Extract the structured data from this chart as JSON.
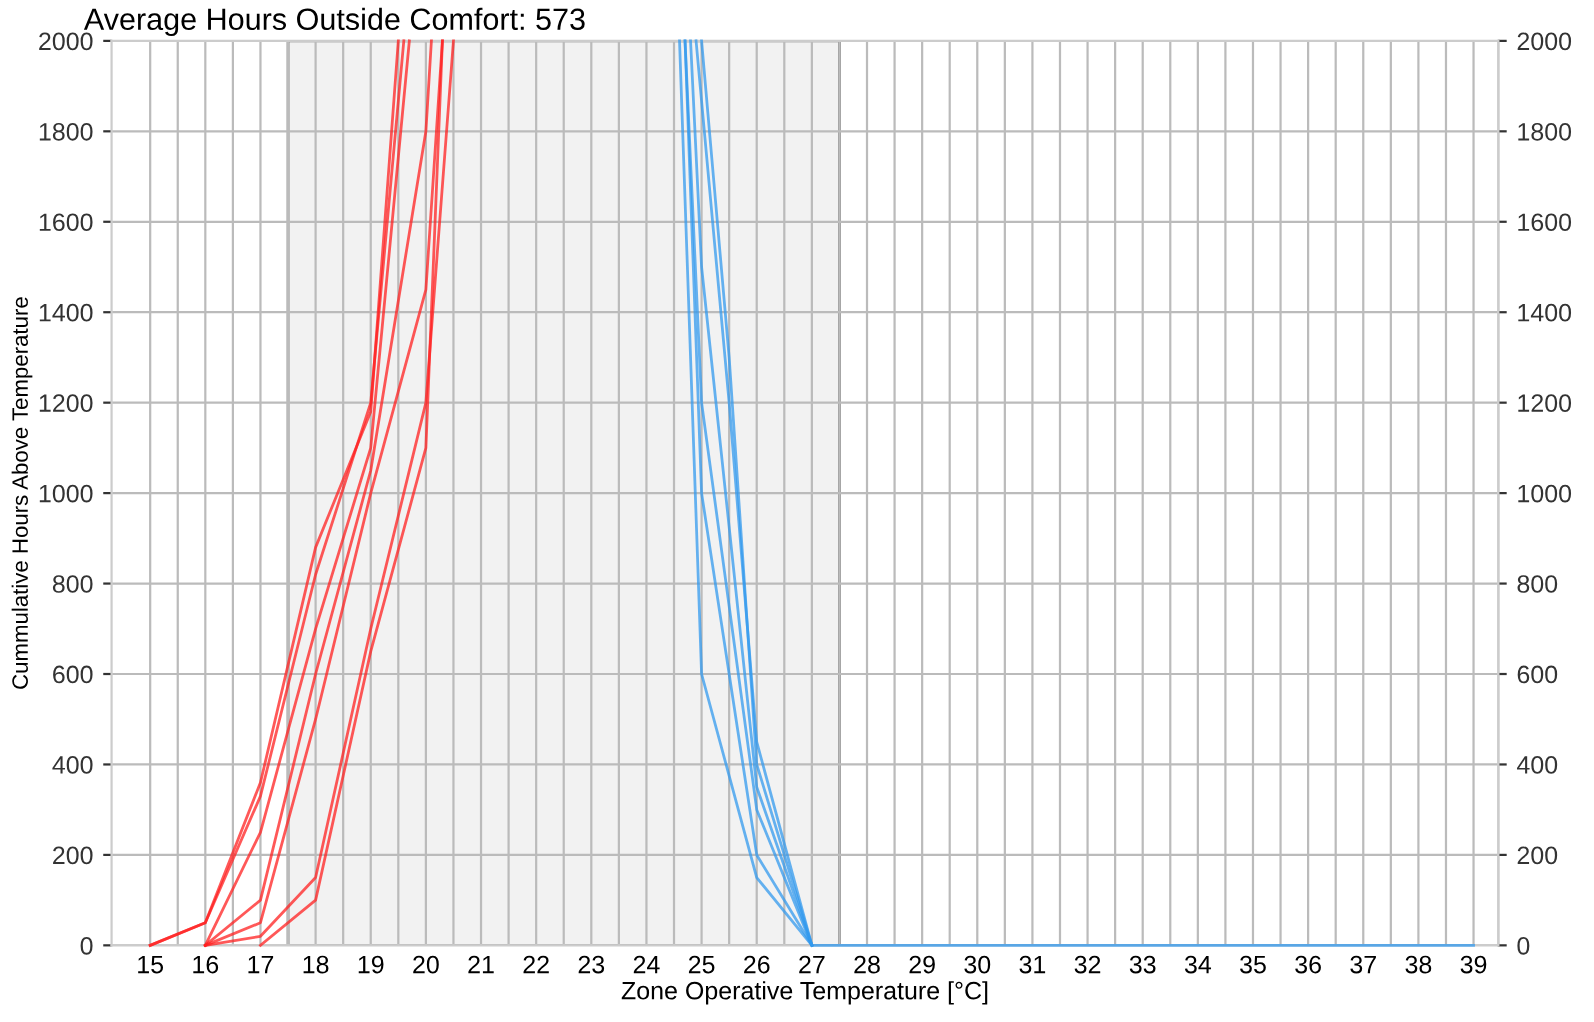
{
  "chart_data": {
    "type": "line",
    "title": "Average Hours Outside Comfort: 573",
    "xlabel": "Zone Operative Temperature [°C]",
    "ylabel": "Cummulative Hours Above Temperature",
    "xlim": [
      14.3,
      39.45
    ],
    "ylim": [
      0,
      2000
    ],
    "y2lim": [
      0,
      2000
    ],
    "xticks": [
      15,
      16,
      17,
      18,
      19,
      20,
      21,
      22,
      23,
      24,
      25,
      26,
      27,
      28,
      29,
      30,
      31,
      32,
      33,
      34,
      35,
      36,
      37,
      38,
      39,
      {
        "value": 15.5,
        "label": null
      },
      {
        "value": 16.5,
        "label": null
      },
      {
        "value": 17.5,
        "label": null
      },
      {
        "value": 18.5,
        "label": null
      },
      {
        "value": 19.5,
        "label": null
      },
      {
        "value": 20.5,
        "label": null
      },
      {
        "value": 21.5,
        "label": null
      },
      {
        "value": 22.5,
        "label": null
      },
      {
        "value": 23.5,
        "label": null
      },
      {
        "value": 24.5,
        "label": null
      },
      {
        "value": 25.5,
        "label": null
      },
      {
        "value": 26.5,
        "label": null
      },
      {
        "value": 27.5,
        "label": null
      },
      {
        "value": 28.5,
        "label": null
      },
      {
        "value": 29.5,
        "label": null
      },
      {
        "value": 30.5,
        "label": null
      },
      {
        "value": 31.5,
        "label": null
      },
      {
        "value": 32.5,
        "label": null
      },
      {
        "value": 33.5,
        "label": null
      },
      {
        "value": 34.5,
        "label": null
      },
      {
        "value": 35.5,
        "label": null
      },
      {
        "value": 36.5,
        "label": null
      },
      {
        "value": 37.5,
        "label": null
      },
      {
        "value": 38.5,
        "label": null
      }
    ],
    "yticks": [
      0,
      200,
      400,
      600,
      800,
      1000,
      1200,
      1400,
      1600,
      1800,
      2000
    ],
    "y2ticks": [
      0,
      200,
      400,
      600,
      800,
      1000,
      1200,
      1400,
      1600,
      1800,
      2000
    ],
    "grid": true,
    "marker": "none",
    "line_style": "solid",
    "bands": [
      {
        "axis": "x",
        "from": 17.5,
        "to": 27.5,
        "color": "#f2f2f2"
      }
    ],
    "series": [
      {
        "color": "#ff2020",
        "x": [
          15,
          16,
          17,
          18,
          19,
          19.6
        ],
        "values": [
          0,
          50,
          330,
          820,
          1200,
          2000
        ]
      },
      {
        "color": "#ff2020",
        "x": [
          15,
          16,
          17,
          18,
          19,
          19.5
        ],
        "values": [
          0,
          50,
          360,
          880,
          1180,
          2000
        ]
      },
      {
        "color": "#ff2020",
        "x": [
          16,
          17,
          18,
          19,
          19.7
        ],
        "values": [
          0,
          250,
          700,
          1100,
          2000
        ]
      },
      {
        "color": "#ff2020",
        "x": [
          16,
          17,
          18,
          19,
          20,
          20.1
        ],
        "values": [
          0,
          100,
          600,
          1050,
          1800,
          2000
        ]
      },
      {
        "color": "#ff2020",
        "x": [
          16,
          17,
          18,
          19,
          20,
          20.3
        ],
        "values": [
          0,
          50,
          500,
          1000,
          1450,
          2000
        ]
      },
      {
        "color": "#ff2020",
        "x": [
          16,
          17,
          18,
          19,
          20,
          20.5
        ],
        "values": [
          0,
          20,
          150,
          700,
          1200,
          2000
        ]
      },
      {
        "color": "#ff2020",
        "x": [
          17,
          18,
          19,
          20,
          20.3
        ],
        "values": [
          0,
          100,
          650,
          1100,
          2000
        ]
      },
      {
        "color": "#3399ee",
        "x": [
          24.6,
          25,
          26,
          27
        ],
        "values": [
          2000,
          600,
          150,
          0
        ]
      },
      {
        "color": "#3399ee",
        "x": [
          24.7,
          25,
          26,
          27
        ],
        "values": [
          2000,
          1000,
          200,
          0
        ]
      },
      {
        "color": "#3399ee",
        "x": [
          24.7,
          25,
          26,
          27
        ],
        "values": [
          2000,
          1200,
          300,
          0
        ]
      },
      {
        "color": "#3399ee",
        "x": [
          24.8,
          25,
          26,
          27
        ],
        "values": [
          2000,
          1500,
          350,
          0
        ]
      },
      {
        "color": "#3399ee",
        "x": [
          24.9,
          25.5,
          26,
          27,
          39
        ],
        "values": [
          2000,
          1200,
          450,
          0,
          0
        ]
      },
      {
        "color": "#3399ee",
        "x": [
          25.0,
          25.5,
          26,
          27
        ],
        "values": [
          2000,
          1300,
          400,
          0
        ]
      }
    ]
  }
}
